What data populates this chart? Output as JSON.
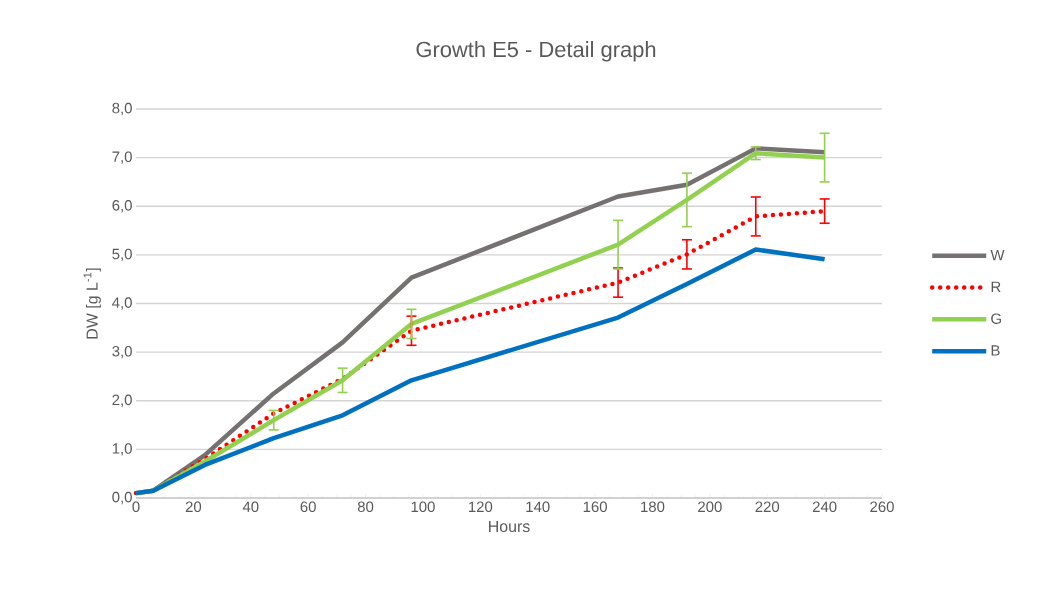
{
  "chart_data": {
    "type": "line",
    "title": "Growth E5 - Detail graph",
    "xlabel": "Hours",
    "ylabel": "DW [g L$^{-1}$]",
    "x": [
      0,
      6,
      24,
      48,
      72,
      96,
      168,
      192,
      216,
      240
    ],
    "series": [
      {
        "name": "W",
        "color": "#767171",
        "line_style": "solid",
        "values": [
          0.1,
          0.15,
          0.88,
          2.15,
          3.2,
          4.53,
          6.2,
          6.44,
          7.19,
          7.11
        ]
      },
      {
        "name": "R",
        "color": "#ff0000",
        "line_style": "dotted",
        "values": [
          0.1,
          0.15,
          0.8,
          1.74,
          2.45,
          3.44,
          4.43,
          5.01,
          5.79,
          5.9
        ],
        "errors": [
          null,
          null,
          null,
          null,
          null,
          0.3,
          0.3,
          0.3,
          0.4,
          0.25
        ]
      },
      {
        "name": "G",
        "color": "#92d050",
        "line_style": "solid",
        "values": [
          0.1,
          0.15,
          0.75,
          1.6,
          2.42,
          3.58,
          5.21,
          6.13,
          7.09,
          7.0
        ],
        "errors": [
          null,
          null,
          null,
          0.2,
          0.25,
          0.3,
          0.5,
          0.55,
          0.13,
          0.5
        ]
      },
      {
        "name": "B",
        "color": "#0070c0",
        "line_style": "solid",
        "values": [
          0.1,
          0.15,
          0.68,
          1.23,
          1.7,
          2.42,
          3.71,
          4.4,
          5.11,
          4.91
        ]
      }
    ],
    "xlim": [
      0,
      260
    ],
    "xticks": [
      0,
      20,
      40,
      60,
      80,
      100,
      120,
      140,
      160,
      180,
      200,
      220,
      240,
      260
    ],
    "ylim": [
      0,
      8
    ],
    "yticks": [
      {
        "value": 0,
        "label": "0,0"
      },
      {
        "value": 1,
        "label": "1,0"
      },
      {
        "value": 2,
        "label": "2,0"
      },
      {
        "value": 3,
        "label": "3,0"
      },
      {
        "value": 4,
        "label": "4,0"
      },
      {
        "value": 5,
        "label": "5,0"
      },
      {
        "value": 6,
        "label": "6,0"
      },
      {
        "value": 7,
        "label": "7,0"
      },
      {
        "value": 8,
        "label": "8,0"
      }
    ],
    "grid": "y",
    "legend": "right",
    "marker": "none"
  }
}
